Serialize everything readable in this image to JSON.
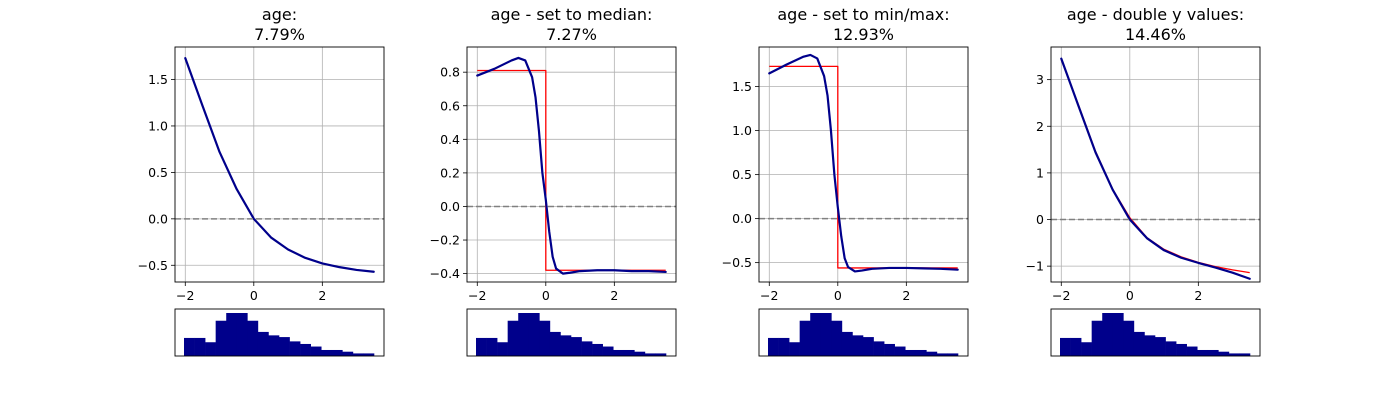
{
  "colors": {
    "curve": "#00008B",
    "fit": "#FF0000",
    "baseline": "#808080",
    "grid": "#B0B0B0",
    "histogram": "#00008B"
  },
  "x_ticks": [
    "−2",
    "0",
    "2"
  ],
  "histogram_counts": [
    0.42,
    0.42,
    0.32,
    0.82,
    1.0,
    1.0,
    0.82,
    0.56,
    0.48,
    0.44,
    0.34,
    0.28,
    0.22,
    0.14,
    0.14,
    0.1,
    0.06,
    0.06
  ],
  "chart_data": [
    {
      "type": "line",
      "title": "age:",
      "subtitle": "7.79%",
      "xlim": [
        -2.3,
        3.8
      ],
      "ylim": [
        -0.68,
        1.85
      ],
      "yticks": [
        -0.5,
        0.0,
        0.5,
        1.0,
        1.5
      ],
      "ytick_labels": [
        "−0.5",
        "0.0",
        "0.5",
        "1.0",
        "1.5"
      ],
      "grid": true,
      "series": [
        {
          "kind": "curve",
          "x": [
            -2.0,
            -1.5,
            -1.0,
            -0.5,
            0.0,
            0.5,
            1.0,
            1.5,
            2.0,
            2.5,
            3.0,
            3.5
          ],
          "values": [
            1.73,
            1.22,
            0.72,
            0.32,
            0.0,
            -0.2,
            -0.33,
            -0.42,
            -0.48,
            -0.52,
            -0.55,
            -0.57
          ]
        },
        {
          "kind": "baseline",
          "x": [
            -2.3,
            3.8
          ],
          "values": [
            0.0,
            0.0
          ]
        }
      ]
    },
    {
      "type": "line",
      "title": "age - set to median:",
      "subtitle": "7.27%",
      "xlim": [
        -2.3,
        3.8
      ],
      "ylim": [
        -0.45,
        0.95
      ],
      "yticks": [
        -0.4,
        -0.2,
        0.0,
        0.2,
        0.4,
        0.6,
        0.8
      ],
      "ytick_labels": [
        "−0.4",
        "−0.2",
        "0.0",
        "0.2",
        "0.4",
        "0.6",
        "0.8"
      ],
      "grid": true,
      "series": [
        {
          "kind": "fit",
          "x": [
            -2.0,
            0.0,
            0.0,
            3.5
          ],
          "values": [
            0.81,
            0.81,
            -0.38,
            -0.38
          ]
        },
        {
          "kind": "curve",
          "x": [
            -2.0,
            -1.5,
            -1.0,
            -0.8,
            -0.6,
            -0.4,
            -0.3,
            -0.2,
            -0.1,
            0.0,
            0.1,
            0.2,
            0.3,
            0.5,
            0.7,
            1.0,
            1.5,
            2.0,
            2.5,
            3.0,
            3.5
          ],
          "values": [
            0.78,
            0.82,
            0.87,
            0.885,
            0.87,
            0.77,
            0.65,
            0.45,
            0.2,
            0.04,
            -0.15,
            -0.3,
            -0.37,
            -0.4,
            -0.395,
            -0.385,
            -0.38,
            -0.38,
            -0.385,
            -0.385,
            -0.39
          ]
        },
        {
          "kind": "baseline",
          "x": [
            -2.3,
            3.8
          ],
          "values": [
            0.0,
            0.0
          ]
        }
      ]
    },
    {
      "type": "line",
      "title": "age - set to min/max:",
      "subtitle": "12.93%",
      "xlim": [
        -2.3,
        3.8
      ],
      "ylim": [
        -0.72,
        1.95
      ],
      "yticks": [
        -0.5,
        0.0,
        0.5,
        1.0,
        1.5
      ],
      "ytick_labels": [
        "−0.5",
        "0.0",
        "0.5",
        "1.0",
        "1.5"
      ],
      "grid": true,
      "series": [
        {
          "kind": "fit",
          "x": [
            -2.0,
            0.0,
            0.0,
            3.5
          ],
          "values": [
            1.73,
            1.73,
            -0.56,
            -0.56
          ]
        },
        {
          "kind": "curve",
          "x": [
            -2.0,
            -1.5,
            -1.0,
            -0.8,
            -0.6,
            -0.4,
            -0.3,
            -0.2,
            -0.1,
            0.0,
            0.1,
            0.2,
            0.3,
            0.5,
            0.7,
            1.0,
            1.5,
            2.0,
            2.5,
            3.0,
            3.5
          ],
          "values": [
            1.65,
            1.75,
            1.84,
            1.86,
            1.82,
            1.62,
            1.4,
            1.0,
            0.5,
            0.13,
            -0.2,
            -0.45,
            -0.55,
            -0.6,
            -0.59,
            -0.57,
            -0.56,
            -0.56,
            -0.565,
            -0.57,
            -0.58
          ]
        },
        {
          "kind": "baseline",
          "x": [
            -2.3,
            3.8
          ],
          "values": [
            0.0,
            0.0
          ]
        }
      ]
    },
    {
      "type": "line",
      "title": "age - double y values:",
      "subtitle": "14.46%",
      "xlim": [
        -2.3,
        3.8
      ],
      "ylim": [
        -1.34,
        3.7
      ],
      "yticks": [
        -1,
        0,
        1,
        2,
        3
      ],
      "ytick_labels": [
        "−1",
        "0",
        "1",
        "2",
        "3"
      ],
      "grid": true,
      "series": [
        {
          "kind": "fit",
          "x": [
            -2.0,
            -1.5,
            -1.0,
            -0.5,
            0.0,
            0.5,
            1.0,
            1.5,
            2.0,
            2.5,
            3.0,
            3.5
          ],
          "values": [
            3.43,
            2.46,
            1.46,
            0.65,
            0.04,
            -0.39,
            -0.64,
            -0.8,
            -0.92,
            -1.01,
            -1.08,
            -1.14
          ]
        },
        {
          "kind": "curve",
          "x": [
            -2.0,
            -1.5,
            -1.0,
            -0.5,
            0.0,
            0.5,
            1.0,
            1.5,
            2.0,
            2.5,
            3.0,
            3.5
          ],
          "values": [
            3.45,
            2.44,
            1.44,
            0.64,
            0.0,
            -0.4,
            -0.66,
            -0.82,
            -0.93,
            -1.03,
            -1.14,
            -1.27
          ]
        },
        {
          "kind": "baseline",
          "x": [
            -2.3,
            3.8
          ],
          "values": [
            0.0,
            0.0
          ]
        }
      ]
    }
  ]
}
